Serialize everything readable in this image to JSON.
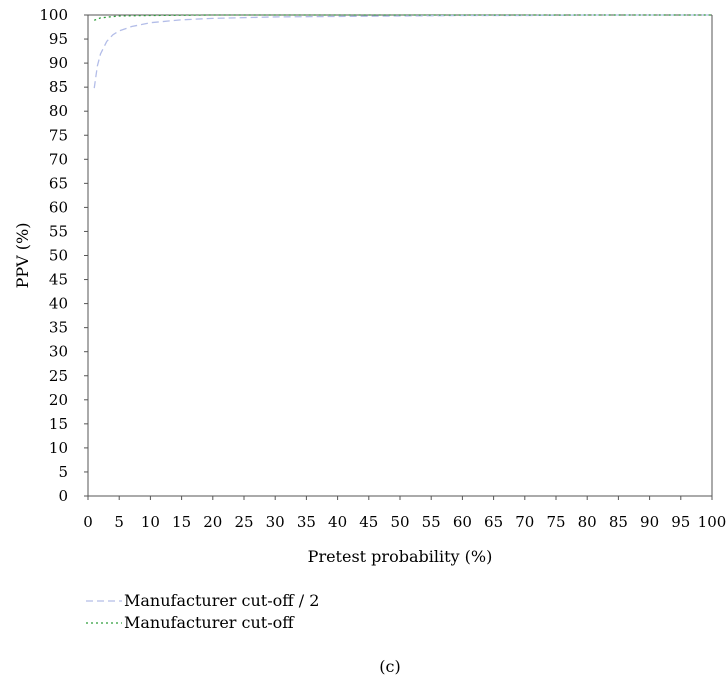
{
  "chart_data": {
    "type": "line",
    "title": "",
    "xlabel": "Pretest probability (%)",
    "ylabel": "PPV (%)",
    "xlim": [
      0,
      100
    ],
    "ylim": [
      0,
      100
    ],
    "xticks": [
      0,
      5,
      10,
      15,
      20,
      25,
      30,
      35,
      40,
      45,
      50,
      55,
      60,
      65,
      70,
      75,
      80,
      85,
      90,
      95,
      100
    ],
    "yticks": [
      0,
      5,
      10,
      15,
      20,
      25,
      30,
      35,
      40,
      45,
      50,
      55,
      60,
      65,
      70,
      75,
      80,
      85,
      90,
      95,
      100
    ],
    "grid": false,
    "legend_position": "bottom-left",
    "series": [
      {
        "name": "Manufacturer cut-off / 2",
        "color": "#b3bde8",
        "line_style": "dashed",
        "x": [
          1,
          1.5,
          2,
          3,
          4,
          5,
          7,
          10,
          15,
          20,
          30,
          40,
          50,
          60,
          70,
          80,
          90,
          100
        ],
        "y": [
          84.8,
          89.4,
          91.9,
          94.5,
          95.9,
          96.7,
          97.6,
          98.4,
          99.0,
          99.3,
          99.6,
          99.7,
          99.8,
          99.9,
          99.9,
          100,
          100,
          100
        ]
      },
      {
        "name": "Manufacturer cut-off",
        "color": "#2e9e3a",
        "line_style": "dotted",
        "x": [
          1,
          2,
          5,
          10,
          20,
          50,
          100
        ],
        "y": [
          98.9,
          99.4,
          99.8,
          99.9,
          100,
          100,
          100
        ]
      }
    ],
    "panel_label": "(c)"
  }
}
